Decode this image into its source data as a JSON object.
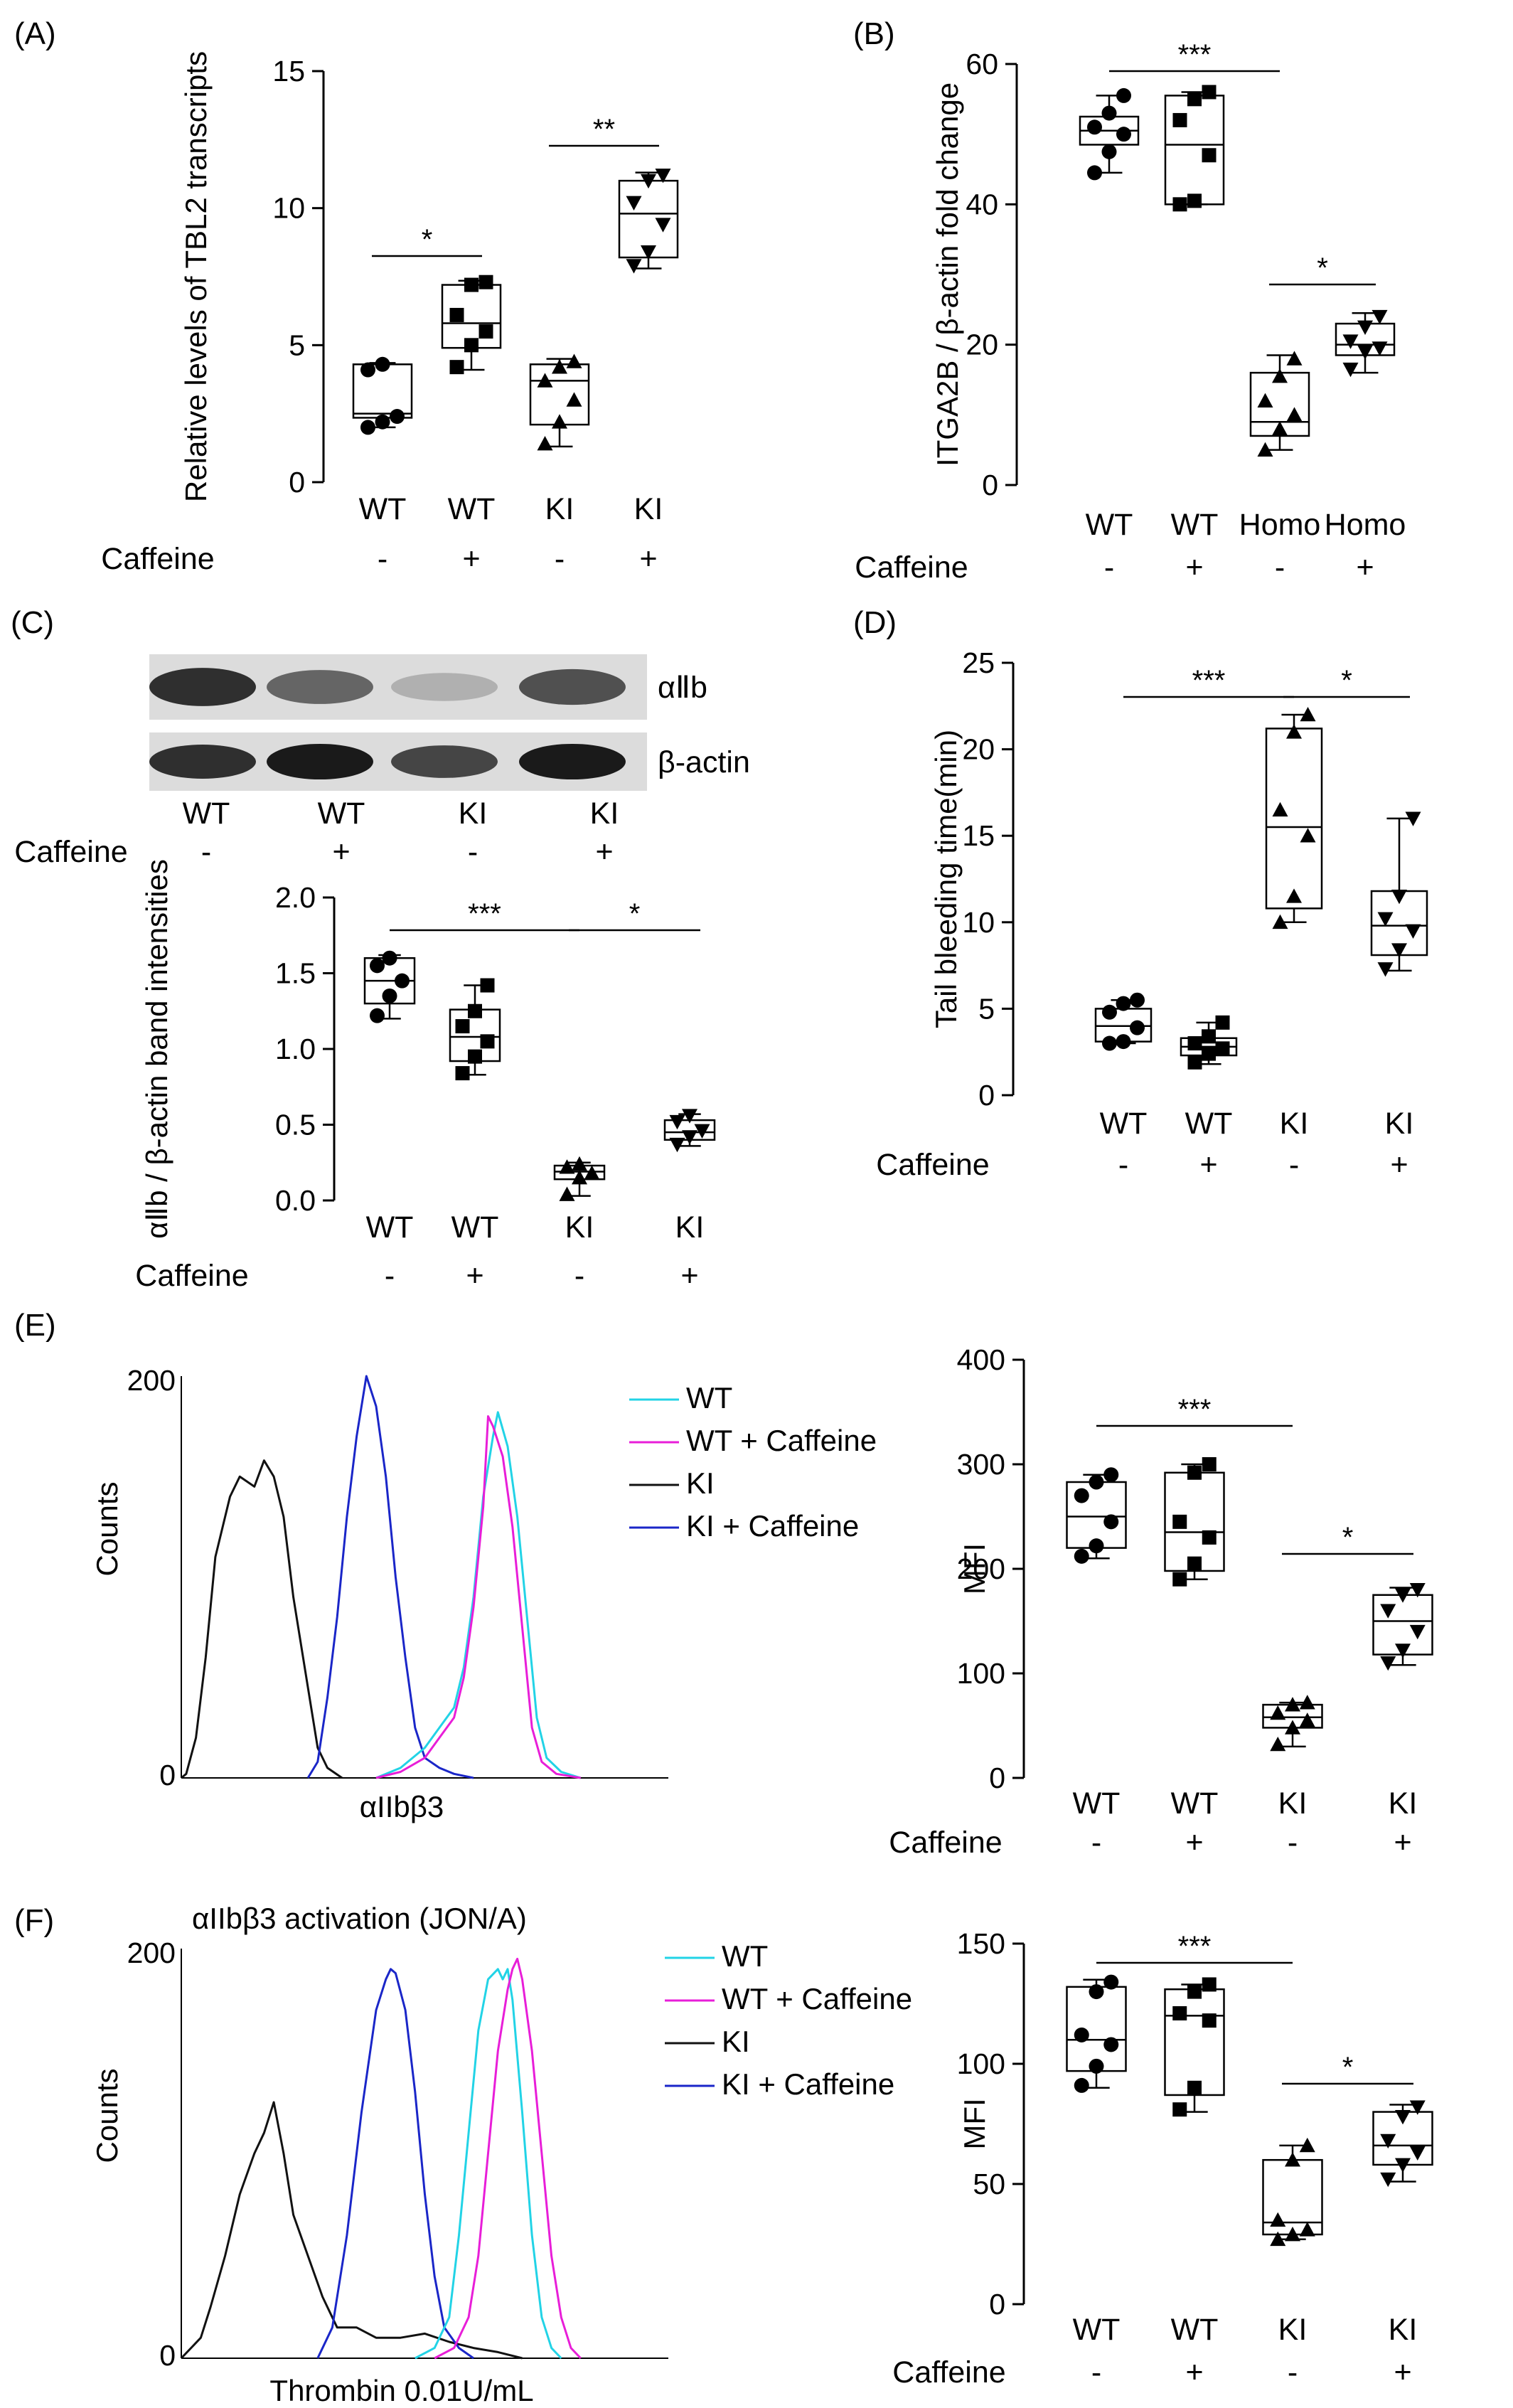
{
  "colors": {
    "WT": "#22d3e6",
    "WT + Caffeine": "#e81ed8",
    "KI": "#111111",
    "KI + Caffeine": "#1a26c8"
  },
  "chart_data": [
    {
      "id": "A",
      "panel_label": "(A)",
      "type": "box",
      "ylabel": "Relative levels of TBL2 transcripts",
      "ylim": [
        0,
        15
      ],
      "yticks": [
        0,
        5,
        10,
        15
      ],
      "categories": [
        "WT",
        "WT",
        "KI",
        "KI"
      ],
      "row_label": "Caffeine",
      "treatment": [
        "-",
        "+",
        "-",
        "+"
      ],
      "boxes": [
        {
          "min": 2.0,
          "q1": 2.35,
          "median": 2.5,
          "q3": 4.3,
          "max": 4.35,
          "marker": "circle",
          "points": [
            2.0,
            2.2,
            2.4,
            4.1,
            4.3
          ]
        },
        {
          "min": 4.1,
          "q1": 4.9,
          "median": 5.8,
          "q3": 7.2,
          "max": 7.35,
          "marker": "square",
          "points": [
            4.2,
            5.0,
            5.5,
            6.1,
            7.2,
            7.3
          ]
        },
        {
          "min": 1.3,
          "q1": 2.1,
          "median": 3.7,
          "q3": 4.3,
          "max": 4.5,
          "marker": "triangle",
          "points": [
            1.4,
            2.2,
            3.0,
            3.7,
            4.2,
            4.4
          ]
        },
        {
          "min": 7.8,
          "q1": 8.2,
          "median": 9.8,
          "q3": 11.0,
          "max": 11.3,
          "marker": "triangle-down",
          "points": [
            7.9,
            8.4,
            9.4,
            10.2,
            11.0,
            11.2
          ]
        }
      ],
      "significance": [
        {
          "from": 0,
          "to": 1,
          "label": "*"
        },
        {
          "from": 2,
          "to": 3,
          "label": "**"
        }
      ]
    },
    {
      "id": "B",
      "panel_label": "(B)",
      "type": "box",
      "ylabel": "ITGA2B / β-actin fold change",
      "ylim": [
        0,
        60
      ],
      "yticks": [
        0,
        20,
        40,
        60
      ],
      "categories": [
        "WT",
        "WT",
        "Homo",
        "Homo"
      ],
      "row_label": "Caffeine",
      "treatment": [
        "-",
        "+",
        "-",
        "+"
      ],
      "boxes": [
        {
          "min": 44.5,
          "q1": 48.5,
          "median": 50.5,
          "q3": 52.5,
          "max": 55.5,
          "marker": "circle",
          "points": [
            44.5,
            47.5,
            50,
            51,
            53,
            55.5
          ]
        },
        {
          "min": 40.0,
          "q1": 40.0,
          "median": 48.5,
          "q3": 55.5,
          "max": 56.0,
          "marker": "square",
          "points": [
            40.0,
            40.5,
            47.0,
            52.0,
            55.0,
            56.0
          ]
        },
        {
          "min": 5.0,
          "q1": 7.0,
          "median": 9.0,
          "q3": 16.0,
          "max": 18.5,
          "marker": "triangle",
          "points": [
            5.0,
            8.0,
            10.0,
            12.0,
            15.5,
            18.0
          ]
        },
        {
          "min": 16.0,
          "q1": 18.5,
          "median": 20.0,
          "q3": 23.0,
          "max": 24.5,
          "marker": "triangle-down",
          "points": [
            16.5,
            19.0,
            19.5,
            20.5,
            22.5,
            24.0
          ]
        }
      ],
      "significance": [
        {
          "from": 0,
          "to": 2,
          "label": "***"
        },
        {
          "from": 2,
          "to": 3,
          "label": "*"
        }
      ]
    },
    {
      "id": "C",
      "panel_label": "(C)",
      "type": "box",
      "ylabel": "αⅡb / β-actin band intensities",
      "ylim": [
        0,
        2.0
      ],
      "yticks": [
        0.0,
        0.5,
        1.0,
        1.5,
        2.0
      ],
      "categories": [
        "WT",
        "WT",
        "KI",
        "KI"
      ],
      "row_label": "Caffeine",
      "treatment": [
        "-",
        "+",
        "-",
        "+"
      ],
      "boxes": [
        {
          "min": 1.2,
          "q1": 1.3,
          "median": 1.45,
          "q3": 1.6,
          "max": 1.62,
          "marker": "circle",
          "points": [
            1.22,
            1.35,
            1.45,
            1.55,
            1.6
          ]
        },
        {
          "min": 0.83,
          "q1": 0.92,
          "median": 1.08,
          "q3": 1.26,
          "max": 1.42,
          "marker": "square",
          "points": [
            0.84,
            0.95,
            1.05,
            1.15,
            1.25,
            1.42
          ]
        },
        {
          "min": 0.03,
          "q1": 0.14,
          "median": 0.19,
          "q3": 0.23,
          "max": 0.25,
          "marker": "triangle",
          "points": [
            0.04,
            0.15,
            0.18,
            0.22,
            0.24
          ]
        },
        {
          "min": 0.36,
          "q1": 0.4,
          "median": 0.45,
          "q3": 0.53,
          "max": 0.57,
          "marker": "triangle-down",
          "points": [
            0.37,
            0.42,
            0.46,
            0.52,
            0.56
          ]
        }
      ],
      "significance": [
        {
          "from": 0,
          "to": 2,
          "label": "***"
        },
        {
          "from": 2,
          "to": 3,
          "label": "*"
        }
      ],
      "blot": {
        "rows": [
          "αⅡb",
          "β-actin"
        ],
        "categories": [
          "WT",
          "WT",
          "KI",
          "KI"
        ],
        "row_label": "Caffeine",
        "treatment": [
          "-",
          "+",
          "-",
          "+"
        ],
        "band_intensity": [
          [
            0.85,
            0.6,
            0.25,
            0.7
          ],
          [
            0.85,
            0.95,
            0.75,
            0.95
          ]
        ]
      }
    },
    {
      "id": "D",
      "panel_label": "(D)",
      "type": "box",
      "ylabel": "Tail bleeding time(min)",
      "ylim": [
        0,
        25
      ],
      "yticks": [
        0,
        5,
        10,
        15,
        20,
        25
      ],
      "categories": [
        "WT",
        "WT",
        "KI",
        "KI"
      ],
      "row_label": "Caffeine",
      "treatment": [
        "-",
        "+",
        "-",
        "+"
      ],
      "boxes": [
        {
          "min": 3.0,
          "q1": 3.1,
          "median": 4.0,
          "q3": 5.0,
          "max": 5.5,
          "marker": "circle",
          "points": [
            3.0,
            3.1,
            3.9,
            4.8,
            5.3,
            5.5
          ]
        },
        {
          "min": 1.8,
          "q1": 2.3,
          "median": 2.8,
          "q3": 3.3,
          "max": 4.2,
          "marker": "square",
          "points": [
            1.9,
            2.4,
            2.7,
            3.0,
            3.4,
            4.2
          ]
        },
        {
          "min": 10.0,
          "q1": 10.8,
          "median": 15.5,
          "q3": 21.2,
          "max": 22.0,
          "marker": "triangle",
          "points": [
            10.0,
            11.5,
            15.0,
            16.5,
            21.0,
            22.0
          ]
        },
        {
          "min": 7.2,
          "q1": 8.1,
          "median": 9.8,
          "q3": 11.8,
          "max": 16.0,
          "marker": "triangle-down",
          "points": [
            7.3,
            8.4,
            9.5,
            10.2,
            11.5,
            16.0
          ]
        }
      ],
      "significance": [
        {
          "from": 0,
          "to": 2,
          "label": "***"
        },
        {
          "from": 2,
          "to": 3,
          "label": "*"
        }
      ]
    },
    {
      "id": "E1",
      "panel_label": "(E)",
      "type": "line",
      "xlabel": "αIIbβ3",
      "ylabel": "Counts",
      "ylim": [
        0,
        200
      ],
      "yticks": [
        0,
        200
      ],
      "xlim": [
        0,
        100
      ],
      "legend": [
        "WT",
        "WT + Caffeine",
        "KI",
        "KI + Caffeine"
      ],
      "series": [
        {
          "name": "KI",
          "x": [
            0,
            1,
            3,
            5,
            7,
            10,
            12,
            15,
            17,
            19,
            21,
            23,
            26,
            28,
            30,
            33
          ],
          "y": [
            0,
            2,
            20,
            60,
            110,
            140,
            150,
            145,
            158,
            150,
            130,
            90,
            45,
            15,
            5,
            0
          ]
        },
        {
          "name": "KI + Caffeine",
          "x": [
            26,
            28,
            30,
            32,
            34,
            36,
            38,
            40,
            42,
            44,
            46,
            48,
            50,
            53,
            56,
            60
          ],
          "y": [
            0,
            8,
            40,
            80,
            130,
            170,
            200,
            185,
            150,
            100,
            60,
            25,
            10,
            5,
            2,
            0
          ]
        },
        {
          "name": "WT",
          "x": [
            40,
            45,
            50,
            53,
            56,
            58,
            60,
            62,
            64,
            65,
            67,
            69,
            71,
            73,
            75,
            78,
            82
          ],
          "y": [
            0,
            5,
            15,
            25,
            35,
            55,
            90,
            140,
            170,
            182,
            165,
            130,
            80,
            30,
            10,
            3,
            0
          ]
        },
        {
          "name": "WT + Caffeine",
          "x": [
            40,
            45,
            50,
            53,
            56,
            58,
            60,
            62,
            63,
            64,
            66,
            68,
            70,
            72,
            74,
            77,
            82
          ],
          "y": [
            0,
            3,
            10,
            20,
            30,
            50,
            85,
            135,
            180,
            175,
            160,
            125,
            75,
            25,
            8,
            2,
            0
          ]
        }
      ]
    },
    {
      "id": "E2",
      "type": "box",
      "ylabel": "MFI",
      "ylim": [
        0,
        400
      ],
      "yticks": [
        0,
        100,
        200,
        300,
        400
      ],
      "categories": [
        "WT",
        "WT",
        "KI",
        "KI"
      ],
      "row_label": "Caffeine",
      "treatment": [
        "-",
        "+",
        "-",
        "+"
      ],
      "boxes": [
        {
          "min": 210,
          "q1": 220,
          "median": 250,
          "q3": 283,
          "max": 290,
          "marker": "circle",
          "points": [
            212,
            222,
            245,
            270,
            283,
            290
          ]
        },
        {
          "min": 190,
          "q1": 198,
          "median": 235,
          "q3": 292,
          "max": 300,
          "marker": "square",
          "points": [
            190,
            205,
            230,
            245,
            292,
            300
          ]
        },
        {
          "min": 30,
          "q1": 48,
          "median": 58,
          "q3": 70,
          "max": 72,
          "marker": "triangle",
          "points": [
            32,
            48,
            55,
            62,
            70,
            72
          ]
        },
        {
          "min": 108,
          "q1": 118,
          "median": 150,
          "q3": 175,
          "max": 182,
          "marker": "triangle-down",
          "points": [
            110,
            122,
            140,
            160,
            175,
            180
          ]
        }
      ],
      "significance": [
        {
          "from": 0,
          "to": 2,
          "label": "***"
        },
        {
          "from": 2,
          "to": 3,
          "label": "*"
        }
      ]
    },
    {
      "id": "F1",
      "panel_label": "(F)",
      "type": "line",
      "title": "αIIbβ3 activation (JON/A)",
      "xlabel": "Thrombin 0.01U/mL",
      "ylabel": "Counts",
      "ylim": [
        0,
        200
      ],
      "yticks": [
        0,
        200
      ],
      "xlim": [
        0,
        100
      ],
      "legend": [
        "WT",
        "WT + Caffeine",
        "KI",
        "KI + Caffeine"
      ],
      "series": [
        {
          "name": "KI",
          "x": [
            0,
            2,
            4,
            6,
            9,
            12,
            15,
            17,
            19,
            21,
            23,
            26,
            29,
            32,
            36,
            40,
            45,
            50,
            55,
            60,
            65,
            70
          ],
          "y": [
            0,
            5,
            10,
            25,
            50,
            80,
            100,
            110,
            125,
            100,
            70,
            50,
            30,
            15,
            15,
            10,
            10,
            12,
            8,
            5,
            3,
            0
          ]
        },
        {
          "name": "KI + Caffeine",
          "x": [
            28,
            31,
            34,
            37,
            40,
            42,
            43,
            44,
            46,
            48,
            50,
            52,
            54,
            57,
            60
          ],
          "y": [
            0,
            15,
            60,
            120,
            170,
            185,
            190,
            188,
            170,
            130,
            80,
            40,
            15,
            5,
            0
          ]
        },
        {
          "name": "WT",
          "x": [
            48,
            52,
            55,
            57,
            59,
            61,
            63,
            65,
            66,
            67,
            68,
            70,
            72,
            74,
            76,
            78
          ],
          "y": [
            0,
            5,
            20,
            60,
            110,
            160,
            185,
            190,
            185,
            190,
            175,
            120,
            60,
            20,
            5,
            0
          ]
        },
        {
          "name": "WT + Caffeine",
          "x": [
            52,
            56,
            59,
            61,
            63,
            65,
            67,
            68,
            69,
            70,
            72,
            74,
            76,
            78,
            80,
            82
          ],
          "y": [
            0,
            5,
            20,
            50,
            100,
            150,
            180,
            190,
            195,
            185,
            150,
            100,
            50,
            20,
            5,
            0
          ]
        }
      ]
    },
    {
      "id": "F2",
      "type": "box",
      "ylabel": "MFI",
      "ylim": [
        0,
        150
      ],
      "yticks": [
        0,
        50,
        100,
        150
      ],
      "categories": [
        "WT",
        "WT",
        "KI",
        "KI"
      ],
      "row_label": "Caffeine",
      "treatment": [
        "-",
        "+",
        "-",
        "+"
      ],
      "boxes": [
        {
          "min": 90,
          "q1": 97,
          "median": 110,
          "q3": 132,
          "max": 135,
          "marker": "circle",
          "points": [
            91,
            99,
            108,
            112,
            130,
            134
          ]
        },
        {
          "min": 80,
          "q1": 87,
          "median": 120,
          "q3": 131,
          "max": 133,
          "marker": "square",
          "points": [
            81,
            90,
            118,
            121,
            130,
            133
          ]
        },
        {
          "min": 27,
          "q1": 29,
          "median": 34,
          "q3": 60,
          "max": 66,
          "marker": "triangle",
          "points": [
            27,
            29,
            31,
            35,
            60,
            66
          ]
        },
        {
          "min": 51,
          "q1": 58,
          "median": 66,
          "q3": 80,
          "max": 83,
          "marker": "triangle-down",
          "points": [
            52,
            58,
            63,
            68,
            78,
            82
          ]
        }
      ],
      "significance": [
        {
          "from": 0,
          "to": 2,
          "label": "***"
        },
        {
          "from": 2,
          "to": 3,
          "label": "*"
        }
      ]
    }
  ]
}
